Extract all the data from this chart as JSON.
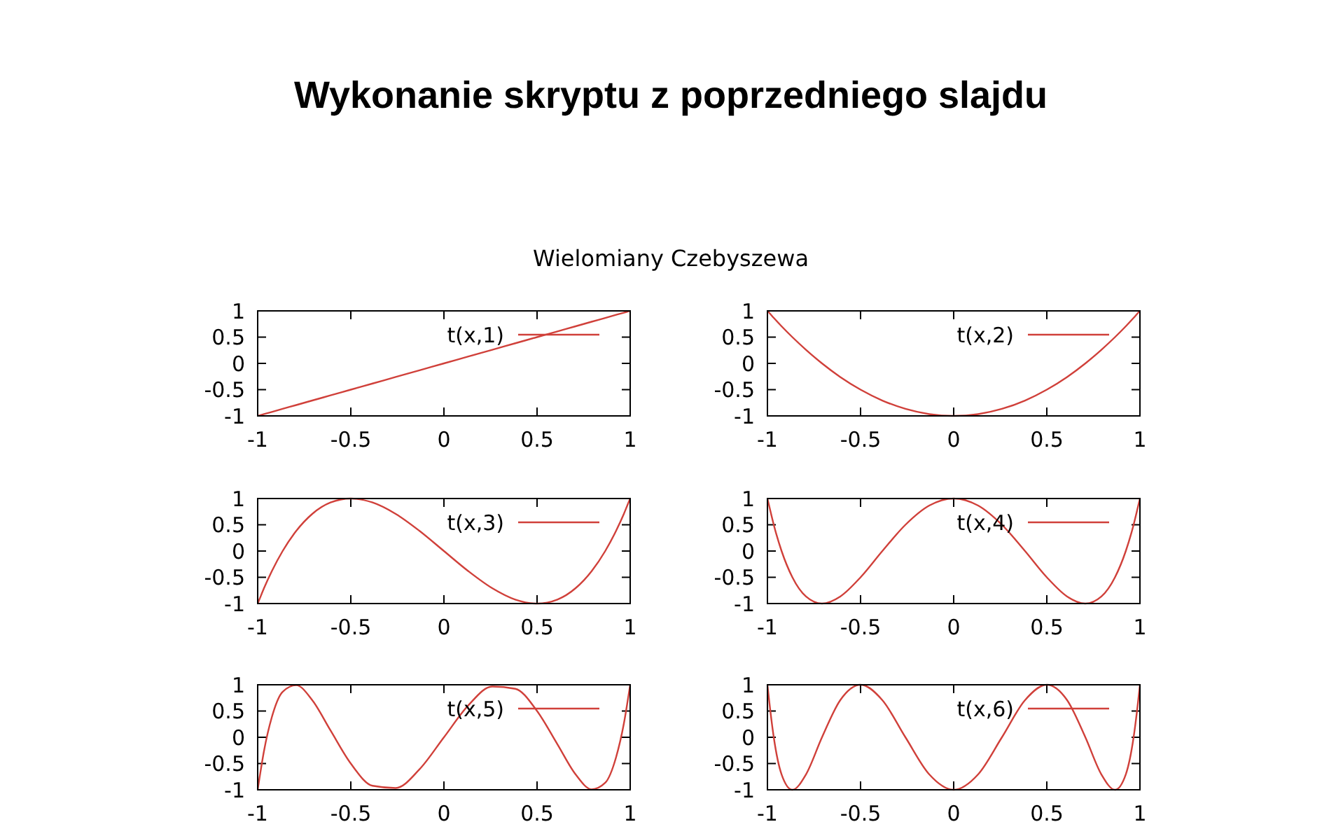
{
  "chart_data": [
    {
      "type": "line",
      "title": "Wykonanie skryptu z poprzedniego slajdu",
      "subtitle": "Wielomiany Czebyszewa",
      "x": [
        -1,
        -0.991,
        -0.966,
        -0.924,
        -0.866,
        -0.793,
        -0.707,
        -0.609,
        -0.5,
        -0.383,
        -0.259,
        -0.131,
        0,
        0.131,
        0.259,
        0.383,
        0.5,
        0.609,
        0.707,
        0.793,
        0.866,
        0.924,
        0.966,
        0.991,
        1
      ],
      "series": [
        {
          "name": "t(x,1)",
          "color": "#d0403a",
          "values": [
            -1,
            -0.991,
            -0.966,
            -0.924,
            -0.866,
            -0.793,
            -0.707,
            -0.609,
            -0.5,
            -0.383,
            -0.259,
            -0.131,
            0,
            0.131,
            0.259,
            0.383,
            0.5,
            0.609,
            0.707,
            0.793,
            0.866,
            0.924,
            0.966,
            0.991,
            1
          ]
        }
      ],
      "xlim": [
        -1,
        1
      ],
      "ylim": [
        -1,
        1
      ],
      "xticks": [
        -1,
        -0.5,
        0,
        0.5,
        1
      ],
      "yticks": [
        -1,
        -0.5,
        0,
        0.5,
        1
      ],
      "legend": "top right"
    },
    {
      "type": "line",
      "x": [
        -1,
        -0.991,
        -0.966,
        -0.924,
        -0.866,
        -0.793,
        -0.707,
        -0.609,
        -0.5,
        -0.383,
        -0.259,
        -0.131,
        0,
        0.131,
        0.259,
        0.383,
        0.5,
        0.609,
        0.707,
        0.793,
        0.866,
        0.924,
        0.966,
        0.991,
        1
      ],
      "series": [
        {
          "name": "t(x,2)",
          "color": "#d0403a",
          "values": [
            1,
            0.966,
            0.866,
            0.707,
            0.5,
            0.259,
            0,
            -0.259,
            -0.5,
            -0.707,
            -0.866,
            -0.966,
            -1,
            -0.966,
            -0.866,
            -0.707,
            -0.5,
            -0.259,
            0,
            0.259,
            0.5,
            0.707,
            0.866,
            0.966,
            1
          ]
        }
      ],
      "xlim": [
        -1,
        1
      ],
      "ylim": [
        -1,
        1
      ],
      "xticks": [
        -1,
        -0.5,
        0,
        0.5,
        1
      ],
      "yticks": [
        -1,
        -0.5,
        0,
        0.5,
        1
      ],
      "legend": "top right"
    },
    {
      "type": "line",
      "x": [
        -1,
        -0.991,
        -0.966,
        -0.924,
        -0.866,
        -0.793,
        -0.707,
        -0.609,
        -0.5,
        -0.383,
        -0.259,
        -0.131,
        0,
        0.131,
        0.259,
        0.383,
        0.5,
        0.609,
        0.707,
        0.793,
        0.866,
        0.924,
        0.966,
        0.991,
        1
      ],
      "series": [
        {
          "name": "t(x,3)",
          "color": "#d0403a",
          "values": [
            -1,
            -0.924,
            -0.707,
            -0.383,
            0,
            0.383,
            0.707,
            0.924,
            1,
            0.924,
            0.707,
            0.383,
            0,
            -0.383,
            -0.707,
            -0.924,
            -1,
            -0.924,
            -0.707,
            -0.383,
            0,
            0.383,
            0.707,
            0.924,
            1
          ]
        }
      ],
      "xlim": [
        -1,
        1
      ],
      "ylim": [
        -1,
        1
      ],
      "xticks": [
        -1,
        -0.5,
        0,
        0.5,
        1
      ],
      "yticks": [
        -1,
        -0.5,
        0,
        0.5,
        1
      ],
      "legend": "top right"
    },
    {
      "type": "line",
      "x": [
        -1,
        -0.991,
        -0.966,
        -0.924,
        -0.866,
        -0.793,
        -0.707,
        -0.609,
        -0.5,
        -0.383,
        -0.259,
        -0.131,
        0,
        0.131,
        0.259,
        0.383,
        0.5,
        0.609,
        0.707,
        0.793,
        0.866,
        0.924,
        0.966,
        0.991,
        1
      ],
      "series": [
        {
          "name": "t(x,4)",
          "color": "#d0403a",
          "values": [
            1,
            0.866,
            0.5,
            0,
            -0.5,
            -0.866,
            -1,
            -0.866,
            -0.5,
            0,
            0.5,
            0.866,
            1,
            0.866,
            0.5,
            0,
            -0.5,
            -0.866,
            -1,
            -0.866,
            -0.5,
            0,
            0.5,
            0.866,
            1
          ]
        }
      ],
      "xlim": [
        -1,
        1
      ],
      "ylim": [
        -1,
        1
      ],
      "xticks": [
        -1,
        -0.5,
        0,
        0.5,
        1
      ],
      "yticks": [
        -1,
        -0.5,
        0,
        0.5,
        1
      ],
      "legend": "top right"
    },
    {
      "type": "line",
      "x": [
        -1,
        -0.991,
        -0.966,
        -0.924,
        -0.866,
        -0.793,
        -0.707,
        -0.609,
        -0.5,
        -0.383,
        -0.259,
        -0.131,
        0,
        0.131,
        0.259,
        0.383,
        0.5,
        0.609,
        0.707,
        0.793,
        0.866,
        0.924,
        0.966,
        0.991,
        1
      ],
      "series": [
        {
          "name": "t(x,5)",
          "color": "#d0403a",
          "values": [
            -1,
            -0.793,
            -0.259,
            0.383,
            0.866,
            0.991,
            0.707,
            0.131,
            -0.5,
            -0.924,
            -0.966,
            -0.609,
            0,
            0.609,
            0.966,
            0.924,
            0.5,
            -0.131,
            -0.707,
            -0.991,
            -0.866,
            -0.383,
            0.259,
            0.793,
            1
          ]
        }
      ],
      "xlim": [
        -1,
        1
      ],
      "ylim": [
        -1,
        1
      ],
      "xticks": [
        -1,
        -0.5,
        0,
        0.5,
        1
      ],
      "yticks": [
        -1,
        -0.5,
        0,
        0.5,
        1
      ],
      "legend": "top right"
    },
    {
      "type": "line",
      "x": [
        -1,
        -0.991,
        -0.966,
        -0.924,
        -0.866,
        -0.793,
        -0.707,
        -0.609,
        -0.5,
        -0.383,
        -0.259,
        -0.131,
        0,
        0.131,
        0.259,
        0.383,
        0.5,
        0.609,
        0.707,
        0.793,
        0.866,
        0.924,
        0.966,
        0.991,
        1
      ],
      "series": [
        {
          "name": "t(x,6)",
          "color": "#d0403a",
          "values": [
            1,
            0.707,
            0,
            -0.707,
            -1,
            -0.707,
            0,
            0.707,
            1,
            0.707,
            0,
            -0.707,
            -1,
            -0.707,
            0,
            0.707,
            1,
            0.707,
            0,
            -0.707,
            -1,
            -0.707,
            0,
            0.707,
            1
          ]
        }
      ],
      "xlim": [
        -1,
        1
      ],
      "ylim": [
        -1,
        1
      ],
      "xticks": [
        -1,
        -0.5,
        0,
        0.5,
        1
      ],
      "yticks": [
        -1,
        -0.5,
        0,
        0.5,
        1
      ],
      "legend": "top right"
    }
  ]
}
